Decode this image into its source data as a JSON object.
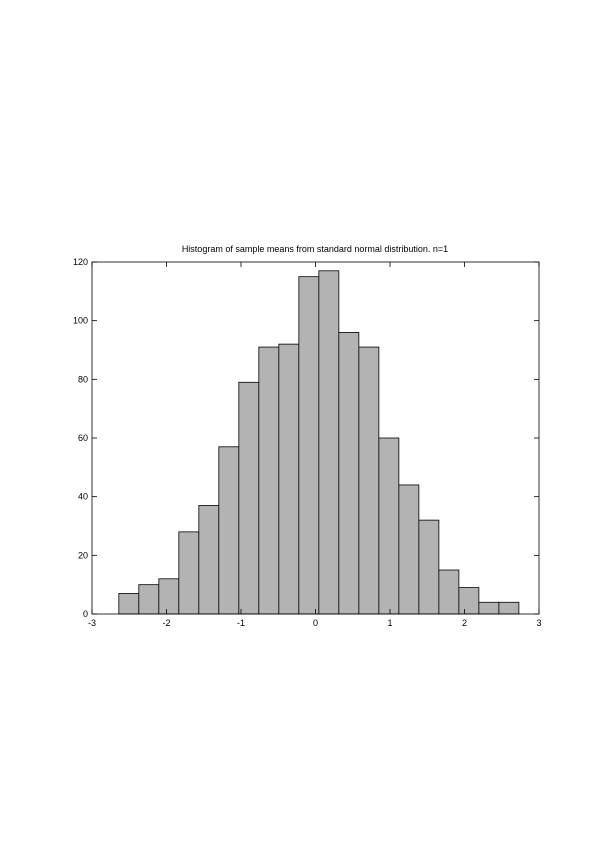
{
  "chart_data": {
    "type": "histogram",
    "title": "Histogram of sample means from standard normal distribution. n=1",
    "bins": [
      -2.64,
      -2.3715,
      -2.103,
      -1.8345,
      -1.566,
      -1.2975,
      -1.029,
      -0.7605,
      -0.492,
      -0.2235,
      0.045,
      0.3135,
      0.582,
      0.8505,
      1.119,
      1.3875,
      1.656,
      1.9245,
      2.193,
      2.4615,
      2.73
    ],
    "values": [
      7,
      10,
      12,
      28,
      37,
      57,
      79,
      91,
      92,
      115,
      117,
      96,
      91,
      60,
      44,
      32,
      15,
      9,
      4,
      4
    ],
    "color": "#b3b3b3",
    "xlim": [
      -3,
      3
    ],
    "xticks": [
      -3,
      -2,
      -1,
      0,
      1,
      2,
      3
    ],
    "ylim": [
      0,
      120
    ],
    "yticks": [
      0,
      20,
      40,
      60,
      80,
      100,
      120
    ]
  }
}
